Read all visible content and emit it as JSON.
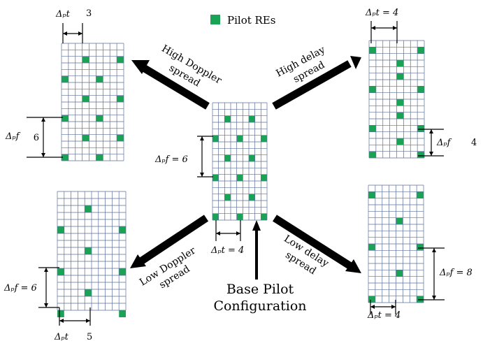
{
  "legend": {
    "label": "Pilot REs",
    "color": "#1aa354"
  },
  "center": {
    "dt_label": "Δₚt = 4",
    "df_label": "Δₚf = 6",
    "caption_line1": "Base Pilot",
    "caption_line2": "Configuration"
  },
  "top_left": {
    "arrow_line1": "High Doppler",
    "arrow_line2": "spread",
    "dt_label": "Δₚt",
    "dt_value": "3",
    "df_label": "Δₚf",
    "df_value": "6"
  },
  "top_right": {
    "arrow_line1": "High delay",
    "arrow_line2": "spread",
    "dt_label": "Δₚt = 4",
    "df_label": "Δₚf",
    "df_value": "4"
  },
  "bottom_left": {
    "arrow_line1": "Low Doppler",
    "arrow_line2": "spread",
    "dt_label": "Δₚt",
    "dt_value": "5",
    "df_label": "Δₚf = 6"
  },
  "bottom_right": {
    "arrow_line1": "Low delay",
    "arrow_line2": "spread",
    "dt_label": "Δₚt = 4",
    "df_label": "Δₚf = 8"
  },
  "colors": {
    "pilot": "#1aa354",
    "grid": "#5a6f99",
    "arrow": "#000000"
  }
}
